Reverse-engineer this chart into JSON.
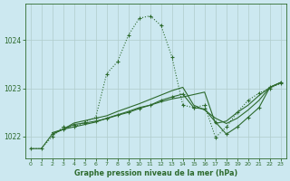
{
  "title": "Graphe pression niveau de la mer (hPa)",
  "bg_color": "#cce8f0",
  "line_color": "#2d6a2d",
  "grid_color": "#b0cccc",
  "xlim": [
    -0.5,
    23.5
  ],
  "ylim": [
    1021.55,
    1024.75
  ],
  "yticks": [
    1022,
    1023,
    1024
  ],
  "xticks": [
    0,
    1,
    2,
    3,
    4,
    5,
    6,
    7,
    8,
    9,
    10,
    11,
    12,
    13,
    14,
    15,
    16,
    17,
    18,
    19,
    20,
    21,
    22,
    23
  ],
  "series1_x": [
    0,
    1,
    2,
    3,
    4,
    5,
    6,
    7,
    8,
    9,
    10,
    11,
    12,
    13,
    14,
    15,
    16,
    17,
    18,
    19,
    20,
    21,
    22,
    23
  ],
  "series1_y": [
    1021.75,
    1021.75,
    1022.0,
    1022.2,
    1022.2,
    1022.3,
    1022.4,
    1023.3,
    1023.55,
    1024.1,
    1024.45,
    1024.5,
    1024.3,
    1023.65,
    1022.65,
    1022.6,
    1022.65,
    1021.98,
    1022.2,
    1022.5,
    1022.75,
    1022.9,
    1023.0,
    1023.1
  ],
  "series2_x": [
    0,
    1,
    2,
    3,
    4,
    5,
    6,
    7,
    8,
    9,
    10,
    11,
    12,
    13,
    14,
    15,
    16,
    17,
    18,
    19,
    20,
    21,
    22,
    23
  ],
  "series2_y": [
    1021.75,
    1021.75,
    1022.05,
    1022.15,
    1022.2,
    1022.25,
    1022.3,
    1022.38,
    1022.45,
    1022.52,
    1022.6,
    1022.65,
    1022.72,
    1022.78,
    1022.82,
    1022.87,
    1022.92,
    1022.27,
    1022.32,
    1022.5,
    1022.65,
    1022.85,
    1023.02,
    1023.12
  ],
  "series3_x": [
    2,
    3,
    4,
    5,
    6,
    7,
    8,
    9,
    10,
    11,
    12,
    13,
    14,
    15,
    16,
    17,
    18,
    19,
    20,
    21,
    22,
    23
  ],
  "series3_y": [
    1022.05,
    1022.15,
    1022.25,
    1022.28,
    1022.32,
    1022.37,
    1022.44,
    1022.5,
    1022.58,
    1022.65,
    1022.75,
    1022.82,
    1022.88,
    1022.6,
    1022.57,
    1022.3,
    1022.05,
    1022.2,
    1022.4,
    1022.6,
    1023.02,
    1023.12
  ],
  "series4_x": [
    2,
    3,
    4,
    5,
    6,
    7,
    8,
    9,
    10,
    11,
    12,
    13,
    14,
    15,
    16,
    17,
    18,
    19,
    20,
    21,
    22,
    23
  ],
  "series4_y": [
    1022.08,
    1022.15,
    1022.28,
    1022.33,
    1022.38,
    1022.43,
    1022.52,
    1022.6,
    1022.68,
    1022.77,
    1022.86,
    1022.95,
    1023.02,
    1022.65,
    1022.55,
    1022.38,
    1022.27,
    1022.38,
    1022.55,
    1022.75,
    1023.02,
    1023.12
  ]
}
